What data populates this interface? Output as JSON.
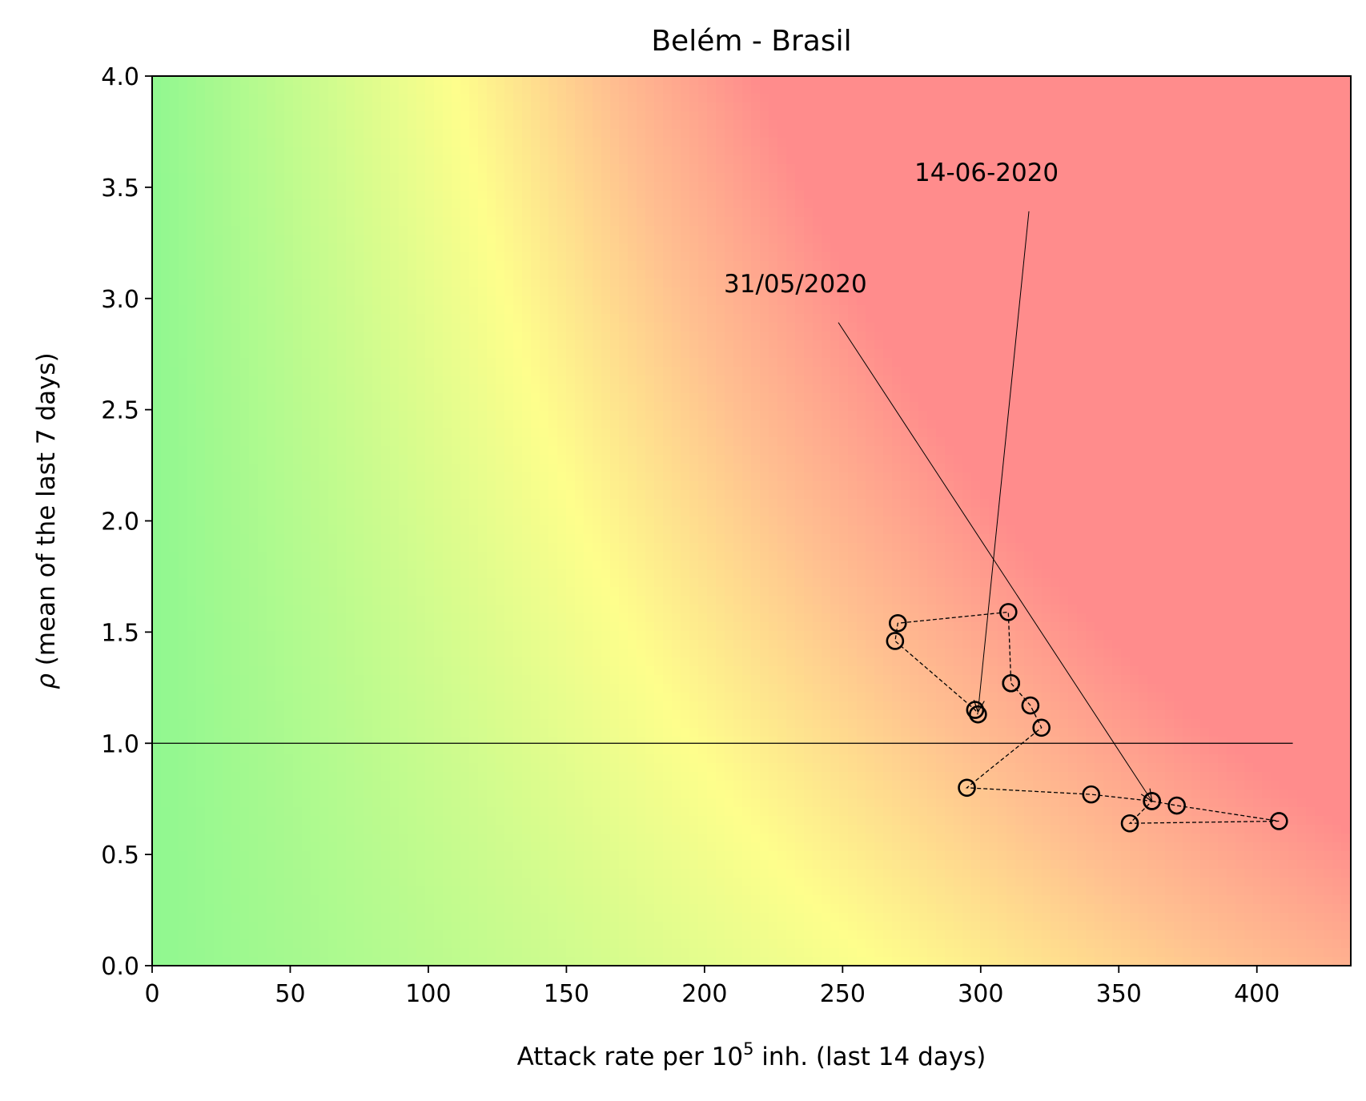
{
  "chart_data": {
    "type": "scatter",
    "title": "Belém - Brasil",
    "xlabel": {
      "prefix": "Attack rate per 10",
      "superscript": "5",
      "suffix": " inh. (last 14 days)"
    },
    "ylabel": {
      "symbol": "ρ",
      "text": " (mean of the last 7 days)"
    },
    "xlim": [
      0,
      434
    ],
    "ylim": [
      0,
      4
    ],
    "xticks": [
      0,
      50,
      100,
      150,
      200,
      250,
      300,
      350,
      400
    ],
    "xtick_labels": [
      "0",
      "50",
      "100",
      "150",
      "200",
      "250",
      "300",
      "350",
      "400"
    ],
    "yticks": [
      0,
      0.5,
      1,
      1.5,
      2,
      2.5,
      3,
      3.5,
      4
    ],
    "ytick_labels": [
      "0.0",
      "0.5",
      "1.0",
      "1.5",
      "2.0",
      "2.5",
      "3.0",
      "3.5",
      "4.0"
    ],
    "reference_line": {
      "y": 1.0,
      "x_range": [
        0,
        413
      ]
    },
    "background": "risk gradient from green (low attack rate, low ρ) through yellow to red (high attack rate, high ρ)",
    "colors": {
      "green": "#90f890",
      "yellow": "#fefe8c",
      "orange": "#ffc090",
      "red": "#ff8c8c"
    },
    "series": [
      {
        "marker": "open-circle",
        "line": "dashed",
        "color": "#000000",
        "points": [
          {
            "x": 362,
            "y": 0.74
          },
          {
            "x": 371,
            "y": 0.72
          },
          {
            "x": 408,
            "y": 0.65
          },
          {
            "x": 354,
            "y": 0.64
          },
          {
            "x": 362,
            "y": 0.74
          },
          {
            "x": 340,
            "y": 0.77
          },
          {
            "x": 295,
            "y": 0.8
          },
          {
            "x": 322,
            "y": 1.07
          },
          {
            "x": 318,
            "y": 1.17
          },
          {
            "x": 311,
            "y": 1.27
          },
          {
            "x": 311,
            "y": 1.27
          },
          {
            "x": 310,
            "y": 1.59
          },
          {
            "x": 270,
            "y": 1.54
          },
          {
            "x": 269,
            "y": 1.46
          },
          {
            "x": 298,
            "y": 1.15
          },
          {
            "x": 299,
            "y": 1.13
          }
        ]
      }
    ],
    "annotations": [
      {
        "text": "31/05/2020",
        "text_x": 207,
        "text_y": 3.0,
        "arrow_to_x": 362,
        "arrow_to_y": 0.74
      },
      {
        "text": "14-06-2020",
        "text_x": 276,
        "text_y": 3.5,
        "arrow_to_x": 299,
        "arrow_to_y": 1.14
      }
    ]
  }
}
